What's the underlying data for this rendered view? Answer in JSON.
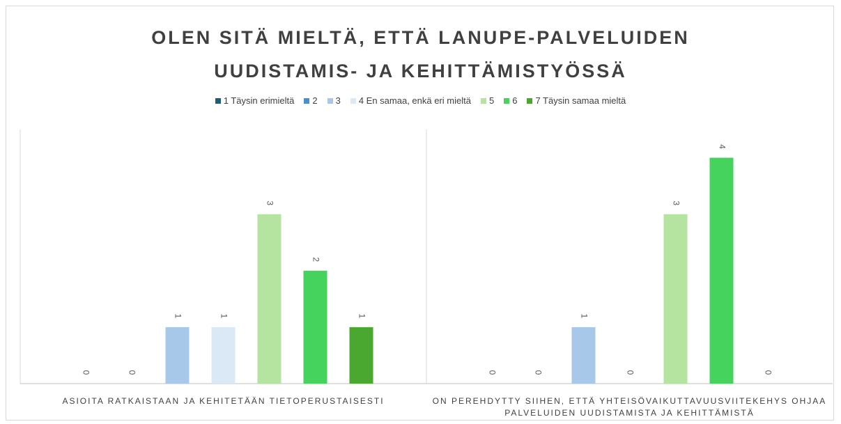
{
  "chart_data": {
    "type": "bar",
    "title": "OLEN SITÄ MIELTÄ, ETTÄ LANUPE-PALVELUIDEN UUDISTAMIS- JA KEHITTÄMISTYÖSSÄ",
    "categories": [
      "ASIOITA RATKAISTAAN JA KEHITETÄÄN TIETOPERUSTAISESTI",
      "ON PEREHDYTTY SIIHEN, ETTÄ YHTEISÖVAIKUTTAVUUSVIITEKEHYS OHJAA PALVELUIDEN UUDISTAMISTA JA KEHITTÄMISTÄ"
    ],
    "series": [
      {
        "name": "1 Täysin erimieltä",
        "color": "#1f5c7a",
        "values": [
          0,
          0
        ]
      },
      {
        "name": "2",
        "color": "#4a8fd1",
        "values": [
          0,
          0
        ]
      },
      {
        "name": "3",
        "color": "#a8c8ea",
        "values": [
          1,
          1
        ]
      },
      {
        "name": "4 En samaa, enkä eri mieltä",
        "color": "#dbe8f6",
        "values": [
          1,
          0
        ]
      },
      {
        "name": "5",
        "color": "#b5e3a0",
        "values": [
          3,
          3
        ]
      },
      {
        "name": "6",
        "color": "#45d35e",
        "values": [
          2,
          4
        ]
      },
      {
        "name": "7 Täysin samaa mieltä",
        "color": "#4aa72f",
        "values": [
          1,
          0
        ]
      }
    ],
    "ylim": [
      0,
      4.5
    ]
  }
}
